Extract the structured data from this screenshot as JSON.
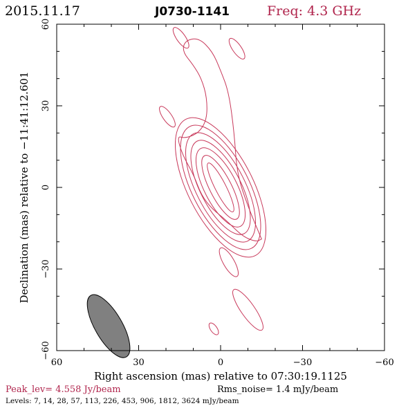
{
  "header": {
    "date": "2015.11.17",
    "source": "J0730-1141",
    "freq": "Freq: 4.3 GHz"
  },
  "axes": {
    "xlabel": "Right ascension (mas) relative to 07:30:19.1125",
    "ylabel": "Declination (mas) relative to −11:41:12.601",
    "xticks": [
      "60",
      "30",
      "0",
      "−30",
      "−60"
    ],
    "yticks": [
      "60",
      "30",
      "0",
      "−30",
      "−60"
    ]
  },
  "footer": {
    "peak": "Peak_lev=  4.558 Jy/beam",
    "rms": "Rms_noise=  1.4 mJy/beam",
    "levels": "Levels:   7,  14,  28,  57, 113, 226, 453, 906, 1812, 3624 mJy/beam"
  },
  "colors": {
    "contour": "#c8385a",
    "freq": "#b0244c",
    "peak": "#b0244c",
    "beam": "#808080",
    "axis": "#000000"
  },
  "chart_data": {
    "type": "contour",
    "xlim": [
      60,
      -60
    ],
    "ylim": [
      -60,
      60
    ],
    "peak_jy_per_beam": 4.558,
    "rms_mjy_per_beam": 1.4,
    "levels_mjy_per_beam": [
      7,
      14,
      28,
      57,
      113,
      226,
      453,
      906,
      1812,
      3624
    ],
    "beam": {
      "ra_mas": 41,
      "dec_mas": -51,
      "major_mas": 13,
      "minor_mas": 5,
      "pa_deg": -30
    },
    "core_contours": [
      {
        "ra": 0,
        "dec": 0,
        "a": 10,
        "b": 2,
        "pa": -30
      },
      {
        "ra": 0,
        "dec": 0,
        "a": 13,
        "b": 4,
        "pa": -30
      },
      {
        "ra": 0,
        "dec": 0,
        "a": 16,
        "b": 6,
        "pa": -30
      },
      {
        "ra": 0,
        "dec": 0,
        "a": 19,
        "b": 7.5,
        "pa": -30
      },
      {
        "ra": 0,
        "dec": 0,
        "a": 22,
        "b": 9,
        "pa": -30
      },
      {
        "ra": 0,
        "dec": 0,
        "a": 25,
        "b": 10.5,
        "pa": -30
      },
      {
        "ra": 0,
        "dec": 0,
        "a": 28,
        "b": 12,
        "pa": -30
      }
    ],
    "outer_contour": [
      [
        -15,
        -19
      ],
      [
        -10,
        -7
      ],
      [
        -6,
        5
      ],
      [
        -5,
        20
      ],
      [
        -3,
        35
      ],
      [
        0,
        43
      ],
      [
        3,
        50
      ],
      [
        8,
        55
      ],
      [
        13,
        54
      ],
      [
        14,
        50
      ],
      [
        10,
        45
      ],
      [
        7,
        40
      ],
      [
        5,
        33
      ],
      [
        5,
        25
      ],
      [
        8,
        20
      ],
      [
        13,
        18
      ],
      [
        16,
        19
      ],
      [
        14,
        12
      ],
      [
        10,
        5
      ],
      [
        7,
        -3
      ],
      [
        3,
        -8
      ],
      [
        -2,
        -12
      ],
      [
        -8,
        -18
      ],
      [
        -13,
        -20
      ],
      [
        -15,
        -19
      ]
    ],
    "components": [
      {
        "ra": 14.5,
        "dec": 55,
        "a": 4.5,
        "b": 1.6,
        "pa": 55
      },
      {
        "ra": -6,
        "dec": 51,
        "a": 4.5,
        "b": 1.6,
        "pa": 55
      },
      {
        "ra": 19.5,
        "dec": 26,
        "a": 4.5,
        "b": 1.6,
        "pa": 55
      },
      {
        "ra": -3,
        "dec": -27.5,
        "a": 6,
        "b": 2,
        "pa": 60
      },
      {
        "ra": -10,
        "dec": -45,
        "a": 9,
        "b": 2.5,
        "pa": 55
      },
      {
        "ra": 2.5,
        "dec": -52,
        "a": 2.5,
        "b": 1.2,
        "pa": 55
      }
    ]
  }
}
